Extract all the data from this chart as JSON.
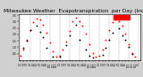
{
  "title": "Milwaukee Weather  Evapotranspiration  per Day (Inches)",
  "title_fontsize": 4.2,
  "bg_color": "#d0d0d0",
  "plot_bg_color": "#ffffff",
  "ylim": [
    0.0,
    0.36
  ],
  "yticks": [
    0.05,
    0.1,
    0.15,
    0.2,
    0.25,
    0.3,
    0.35
  ],
  "ytick_labels": [
    ".05",
    ".10",
    ".15",
    ".20",
    ".25",
    ".30",
    ".35"
  ],
  "red_x": [
    1,
    2,
    3,
    4,
    5,
    6,
    7,
    8,
    9,
    10,
    11,
    12,
    13,
    14,
    15,
    16,
    17,
    18,
    19,
    20,
    21,
    22,
    23,
    24,
    25,
    26,
    27,
    28,
    29,
    30,
    31,
    32,
    33,
    34,
    35,
    36
  ],
  "red_y": [
    0.035,
    0.085,
    0.155,
    0.235,
    0.295,
    0.325,
    0.315,
    0.275,
    0.215,
    0.135,
    0.065,
    0.025,
    0.035,
    0.08,
    0.145,
    0.225,
    0.305,
    0.328,
    0.305,
    0.265,
    0.205,
    0.125,
    0.055,
    0.025,
    0.035,
    0.085,
    0.155,
    0.235,
    0.295,
    0.315,
    0.305,
    0.265,
    0.205,
    0.125,
    0.055,
    0.025
  ],
  "black_x": [
    2,
    3,
    4,
    6,
    7,
    8,
    9,
    11,
    13,
    15,
    16,
    18,
    19,
    21,
    22,
    23,
    26,
    27,
    28,
    29,
    31,
    32,
    33,
    34,
    35
  ],
  "black_y": [
    0.095,
    0.15,
    0.235,
    0.265,
    0.22,
    0.175,
    0.095,
    0.025,
    0.025,
    0.115,
    0.195,
    0.275,
    0.155,
    0.085,
    0.035,
    0.02,
    0.04,
    0.095,
    0.155,
    0.215,
    0.245,
    0.195,
    0.155,
    0.1,
    0.045
  ],
  "vline_positions": [
    1,
    4,
    7,
    10,
    13,
    16,
    19,
    22,
    25,
    28,
    31,
    34,
    37
  ],
  "xtick_positions": [
    1,
    2,
    3,
    4,
    5,
    6,
    7,
    8,
    9,
    10,
    11,
    12,
    13,
    14,
    15,
    16,
    17,
    18,
    19,
    20,
    21,
    22,
    23,
    24,
    25,
    26,
    27,
    28,
    29,
    30,
    31,
    32,
    33,
    34,
    35,
    36,
    37
  ],
  "xtick_labels": [
    "1/1",
    "2/1",
    "3/1",
    "4/1",
    "5/1",
    "6/1",
    "7/1",
    "8/1",
    "9/1",
    "10/1",
    "11/1",
    "12/1",
    "1/1",
    "2/1",
    "3/1",
    "4/1",
    "5/1",
    "6/1",
    "7/1",
    "8/1",
    "9/1",
    "10/1",
    "11/1",
    "12/1",
    "1/1",
    "2/1",
    "3/1",
    "4/1",
    "5/1",
    "6/1",
    "7/1",
    "8/1",
    "9/1",
    "10/1",
    "11/1",
    "12/1",
    "1/1"
  ],
  "red_dot_color": "#ff0000",
  "black_dot_color": "#000000",
  "vline_color": "#888888",
  "legend_rect_color": "#ff0000",
  "marker_size": 1.8
}
